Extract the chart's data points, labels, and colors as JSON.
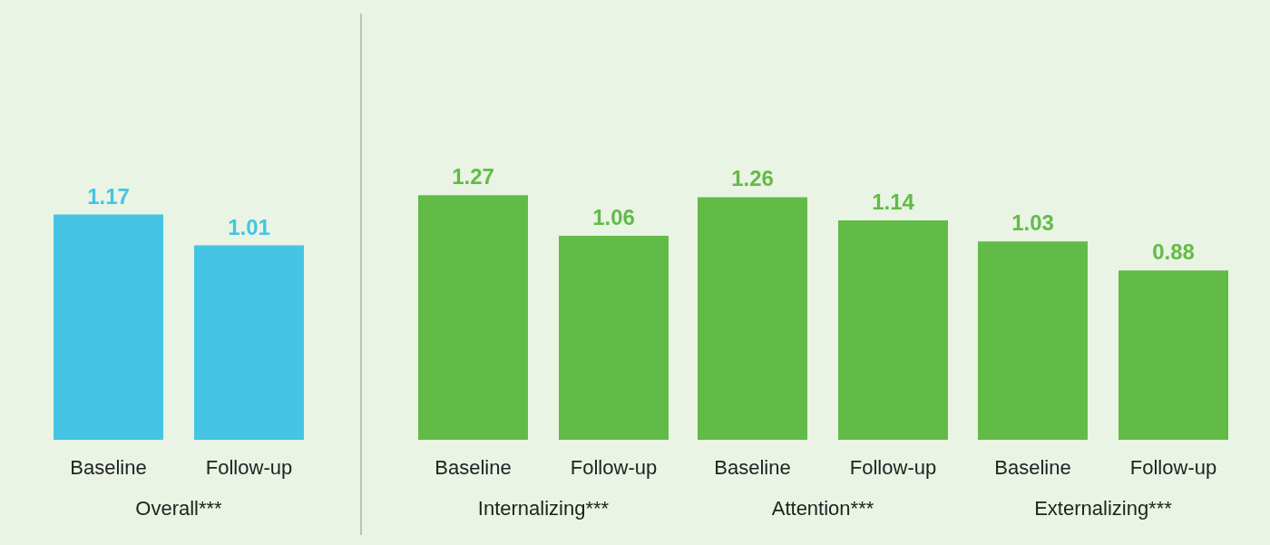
{
  "chart_data": [
    {
      "type": "bar",
      "categories": [
        "Baseline",
        "Follow-up"
      ],
      "values": [
        1.17,
        1.01
      ],
      "color": "#45c5e3",
      "xlabel": "Overall***",
      "data_labels": true,
      "tick_labels": "x"
    },
    {
      "type": "bar",
      "categories": [
        "Baseline",
        "Follow-up"
      ],
      "values": [
        1.27,
        1.06
      ],
      "color": "#62bb47",
      "xlabel": "Internalizing***",
      "data_labels": true,
      "tick_labels": "x"
    },
    {
      "type": "bar",
      "categories": [
        "Baseline",
        "Follow-up"
      ],
      "values": [
        1.26,
        1.14
      ],
      "color": "#62bb47",
      "xlabel": "Attention***",
      "data_labels": true,
      "tick_labels": "x"
    },
    {
      "type": "bar",
      "categories": [
        "Baseline",
        "Follow-up"
      ],
      "values": [
        1.03,
        0.88
      ],
      "color": "#62bb47",
      "xlabel": "Externalizing***",
      "data_labels": true,
      "tick_labels": "x"
    }
  ]
}
